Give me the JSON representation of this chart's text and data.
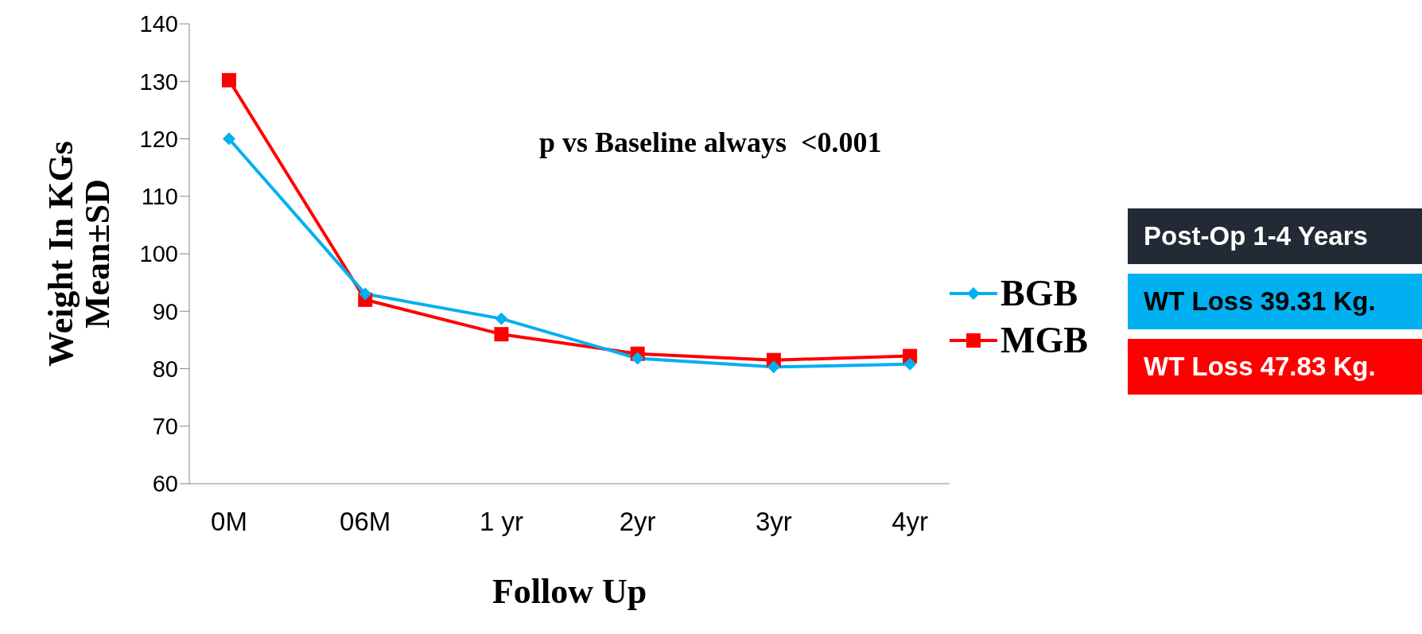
{
  "chart_data": {
    "type": "line",
    "xlabel": "Follow Up",
    "ylabel": "Weight In KGs\nMean±SD",
    "categories": [
      "0M",
      "06M",
      "1 yr",
      "2yr",
      "3yr",
      "4yr"
    ],
    "series": [
      {
        "name": "BGB",
        "color": "#00b0f0",
        "marker": "diamond",
        "values": [
          120,
          93,
          88.7,
          81.8,
          80.3,
          80.8
        ]
      },
      {
        "name": "MGB",
        "color": "#ff0000",
        "marker": "square",
        "values": [
          130.2,
          92,
          86,
          82.6,
          81.5,
          82.2
        ]
      }
    ],
    "ylim": [
      60,
      140
    ],
    "yticks": [
      60,
      70,
      80,
      90,
      100,
      110,
      120,
      130,
      140
    ],
    "grid": false,
    "legend": "right",
    "annotations": [
      "p vs Baseline always  <0.001",
      "Post-Op 1-4 Years",
      "WT Loss 39.31 Kg.",
      "WT Loss 47.83 Kg."
    ]
  }
}
